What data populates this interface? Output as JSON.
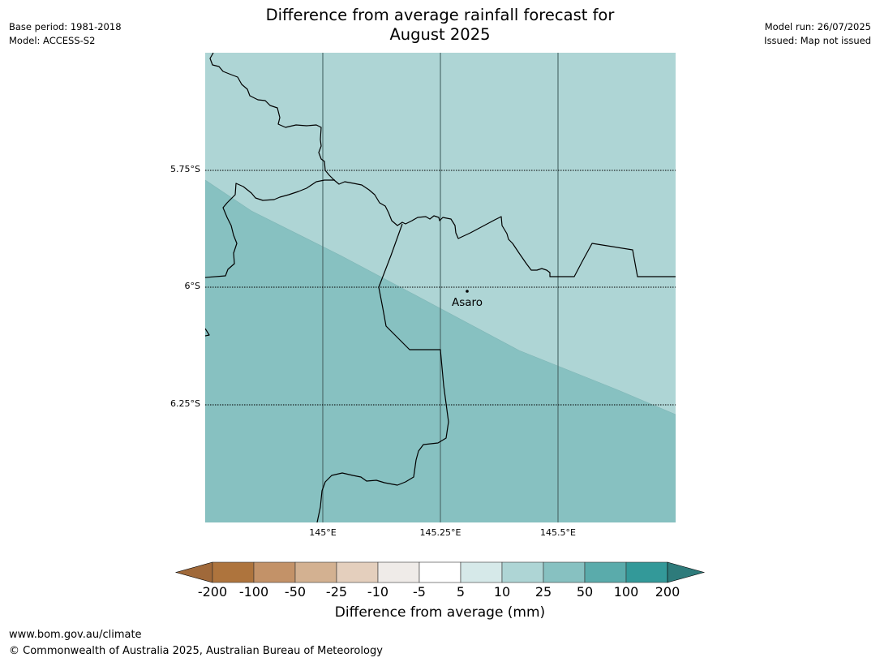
{
  "title_line1": "Difference from average rainfall forecast for",
  "title_line2": "August 2025",
  "meta_left": {
    "base_period": "Base period: 1981-2018",
    "model": "Model: ACCESS-S2"
  },
  "meta_right": {
    "model_run": "Model run: 26/07/2025",
    "issued": "Issued: Map not issued"
  },
  "map": {
    "lat_labels": [
      "5.75°S",
      "6°S",
      "6.25°S"
    ],
    "lon_labels": [
      "145°E",
      "145.25°E",
      "145.5°E"
    ],
    "place": {
      "name": "Asaro"
    },
    "zones": [
      {
        "category": "10 to 25",
        "color": "#aed5d5"
      },
      {
        "category": "25 to 50",
        "color": "#87c1c1"
      }
    ]
  },
  "legend": {
    "title": "Difference from average (mm)",
    "ticks": [
      "-200",
      "-100",
      "-50",
      "-25",
      "-10",
      "-5",
      "5",
      "10",
      "25",
      "50",
      "100",
      "200"
    ],
    "colors": [
      "#a0693a",
      "#ae743d",
      "#c39268",
      "#d3b191",
      "#e4cfbd",
      "#efebe8",
      "#ffffff",
      "#d6e9e9",
      "#aed5d5",
      "#87c1c1",
      "#5aabab",
      "#339999",
      "#2e7b7b"
    ]
  },
  "footer": {
    "url": "www.bom.gov.au/climate",
    "copyright": "© Commonwealth of Australia 2025, Australian Bureau of Meteorology"
  }
}
